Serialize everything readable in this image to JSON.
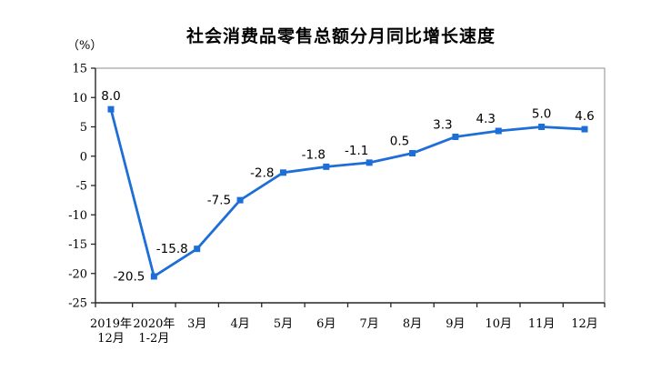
{
  "page": {
    "background": "#ffffff"
  },
  "chart_data": {
    "type": "line",
    "title": "社会消费品零售总额分月同比增长速度",
    "unit_label": "（%）",
    "categories": [
      [
        "2019年",
        "12月"
      ],
      [
        "2020年",
        "1-2月"
      ],
      [
        "3月"
      ],
      [
        "4月"
      ],
      [
        "5月"
      ],
      [
        "6月"
      ],
      [
        "7月"
      ],
      [
        "8月"
      ],
      [
        "9月"
      ],
      [
        "10月"
      ],
      [
        "11月"
      ],
      [
        "12月"
      ]
    ],
    "values": [
      8.0,
      -20.5,
      -15.8,
      -7.5,
      -2.8,
      -1.8,
      -1.1,
      0.5,
      3.3,
      4.3,
      5.0,
      4.6
    ],
    "value_labels": [
      "8.0",
      "-20.5",
      "-15.8",
      "-7.5",
      "-2.8",
      "-1.8",
      "-1.1",
      "0.5",
      "3.3",
      "4.3",
      "5.0",
      "4.6"
    ],
    "label_placement": [
      "above",
      "left",
      "left",
      "left",
      "left",
      "above-left",
      "above-left",
      "above-left",
      "above-left",
      "above-left",
      "above",
      "above"
    ],
    "ylim": [
      -25,
      15
    ],
    "yticks": [
      15,
      10,
      5,
      0,
      -5,
      -10,
      -15,
      -20,
      -25
    ],
    "grid": false,
    "legend": "none",
    "marker": "square",
    "xlabel": "",
    "ylabel": "",
    "line_color": "#1d6ed6",
    "label_color": "#000000",
    "axis_text_color": "#000000",
    "axis_line_color": "#262626",
    "plot_border_color": "#8c8c8c"
  }
}
